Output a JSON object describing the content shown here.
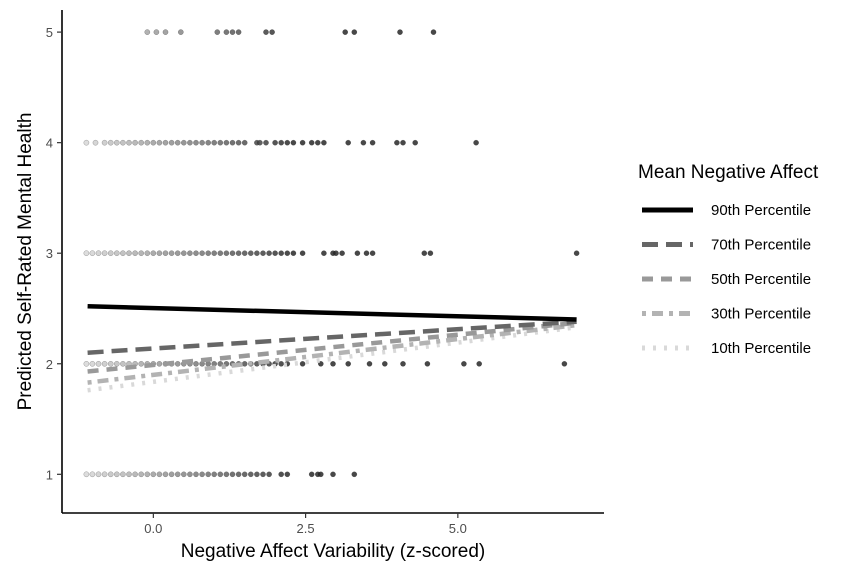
{
  "chart_data": {
    "type": "scatter",
    "xlabel": "Negative Affect Variability (z-scored)",
    "ylabel": "Predicted Self-Rated Mental Health",
    "xlim": [
      -1.5,
      7.4
    ],
    "ylim": [
      0.65,
      5.2
    ],
    "x_ticks": [
      0,
      2.5,
      5
    ],
    "x_tick_labels": [
      "0.0",
      "2.5",
      "5.0"
    ],
    "y_ticks": [
      1,
      2,
      3,
      4,
      5
    ],
    "y_tick_labels": [
      "1",
      "2",
      "3",
      "4",
      "5"
    ],
    "grid": false,
    "legend": {
      "title": "Mean Negative Affect",
      "position": "right",
      "entries": [
        "90th Percentile",
        "70th Percentile",
        "50th Percentile",
        "30th Percentile",
        "10th Percentile"
      ]
    },
    "points": [
      {
        "y": 5,
        "x": [
          -0.1,
          0.05,
          0.2,
          0.45,
          1.05,
          1.2,
          1.3,
          1.4,
          1.85,
          1.95,
          3.15,
          3.3,
          4.05,
          4.6
        ]
      },
      {
        "y": 4,
        "x": [
          -1.1,
          -0.95,
          -0.8,
          -0.7,
          -0.6,
          -0.5,
          -0.4,
          -0.3,
          -0.2,
          -0.1,
          0.0,
          0.1,
          0.2,
          0.3,
          0.4,
          0.5,
          0.6,
          0.7,
          0.8,
          0.9,
          1.0,
          1.1,
          1.2,
          1.3,
          1.4,
          1.5,
          1.7,
          1.75,
          1.85,
          2.0,
          2.1,
          2.2,
          2.3,
          2.45,
          2.6,
          2.7,
          2.8,
          3.2,
          3.45,
          3.6,
          4.0,
          4.1,
          4.3,
          5.3
        ]
      },
      {
        "y": 3,
        "x": [
          -1.1,
          -1.0,
          -0.9,
          -0.8,
          -0.7,
          -0.6,
          -0.5,
          -0.4,
          -0.3,
          -0.2,
          -0.1,
          0.0,
          0.1,
          0.2,
          0.3,
          0.4,
          0.5,
          0.6,
          0.7,
          0.8,
          0.9,
          1.0,
          1.1,
          1.2,
          1.3,
          1.4,
          1.5,
          1.6,
          1.7,
          1.8,
          1.9,
          2.0,
          2.1,
          2.2,
          2.3,
          2.45,
          2.8,
          2.95,
          3.0,
          3.1,
          3.35,
          3.5,
          3.6,
          4.45,
          4.55,
          6.95
        ]
      },
      {
        "y": 2,
        "x": [
          -1.1,
          -1.0,
          -0.9,
          -0.8,
          -0.7,
          -0.6,
          -0.5,
          -0.4,
          -0.3,
          -0.2,
          -0.1,
          0.0,
          0.1,
          0.2,
          0.3,
          0.4,
          0.5,
          0.6,
          0.7,
          0.8,
          0.9,
          1.0,
          1.1,
          1.2,
          1.3,
          1.4,
          1.5,
          1.6,
          1.7,
          1.8,
          1.9,
          2.0,
          2.1,
          2.2,
          2.45,
          2.75,
          2.95,
          3.2,
          3.55,
          3.8,
          4.1,
          4.5,
          5.1,
          5.35,
          6.75
        ]
      },
      {
        "y": 1,
        "x": [
          -1.1,
          -1.0,
          -0.9,
          -0.8,
          -0.7,
          -0.6,
          -0.5,
          -0.4,
          -0.3,
          -0.2,
          -0.1,
          0.0,
          0.1,
          0.2,
          0.3,
          0.4,
          0.5,
          0.6,
          0.7,
          0.8,
          0.9,
          1.0,
          1.1,
          1.2,
          1.3,
          1.4,
          1.5,
          1.6,
          1.7,
          1.8,
          1.9,
          2.1,
          2.2,
          2.6,
          2.7,
          2.75,
          2.95,
          3.3
        ]
      }
    ],
    "series": [
      {
        "name": "90th Percentile",
        "x": [
          -1.08,
          6.95
        ],
        "y": [
          2.52,
          2.4
        ],
        "color": "#000000",
        "dash": "solid"
      },
      {
        "name": "70th Percentile",
        "x": [
          -1.08,
          6.95
        ],
        "y": [
          2.1,
          2.38
        ],
        "color": "#666666",
        "dash": "longdash"
      },
      {
        "name": "50th Percentile",
        "x": [
          -1.08,
          6.95
        ],
        "y": [
          1.93,
          2.37
        ],
        "color": "#999999",
        "dash": "dash"
      },
      {
        "name": "30th Percentile",
        "x": [
          -1.08,
          6.95
        ],
        "y": [
          1.83,
          2.35
        ],
        "color": "#b3b3b3",
        "dash": "dotdash"
      },
      {
        "name": "10th Percentile",
        "x": [
          -1.08,
          6.95
        ],
        "y": [
          1.76,
          2.33
        ],
        "color": "#d9d9d9",
        "dash": "dotted"
      }
    ]
  }
}
